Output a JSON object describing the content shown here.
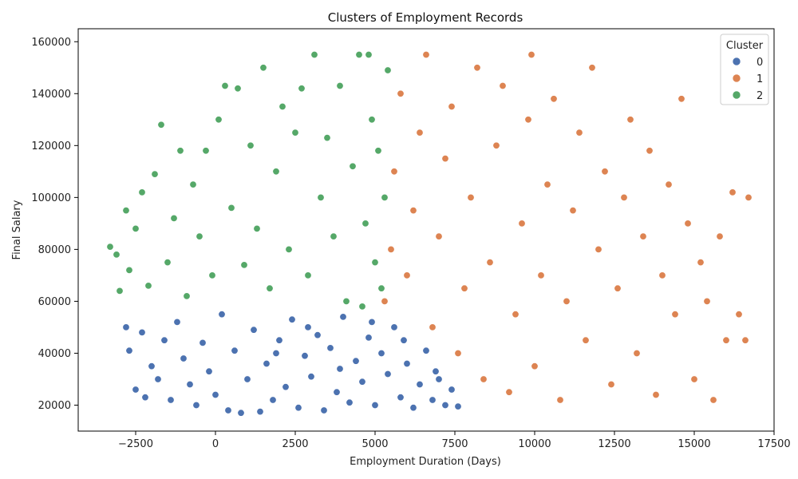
{
  "chart_data": {
    "type": "scatter",
    "title": "Clusters of Employment Records",
    "xlabel": "Employment Duration (Days)",
    "ylabel": "Final Salary",
    "xlim": [
      -4300,
      17500
    ],
    "ylim": [
      10000,
      165000
    ],
    "xticks": [
      -2500,
      0,
      2500,
      5000,
      7500,
      10000,
      12500,
      15000,
      17500
    ],
    "xtick_labels": [
      "−2500",
      "0",
      "2500",
      "5000",
      "7500",
      "10000",
      "12500",
      "15000",
      "17500"
    ],
    "yticks": [
      20000,
      40000,
      60000,
      80000,
      100000,
      120000,
      140000,
      160000
    ],
    "ytick_labels": [
      "20000",
      "40000",
      "60000",
      "80000",
      "100000",
      "120000",
      "140000",
      "160000"
    ],
    "grid": false,
    "legend": {
      "title": "Cluster",
      "placement": "top-right",
      "entries": [
        {
          "label": "0",
          "color": "#4c72b0"
        },
        {
          "label": "1",
          "color": "#dd8452"
        },
        {
          "label": "2",
          "color": "#55a868"
        }
      ]
    },
    "series": [
      {
        "name": "0",
        "color": "#4c72b0",
        "points": [
          [
            -2500,
            26000
          ],
          [
            -2700,
            41000
          ],
          [
            -2800,
            50000
          ],
          [
            -2200,
            23000
          ],
          [
            -2300,
            48000
          ],
          [
            -2000,
            35000
          ],
          [
            -1800,
            30000
          ],
          [
            -1600,
            45000
          ],
          [
            -1400,
            22000
          ],
          [
            -1200,
            52000
          ],
          [
            -1000,
            38000
          ],
          [
            -800,
            28000
          ],
          [
            -600,
            20000
          ],
          [
            -400,
            44000
          ],
          [
            -200,
            33000
          ],
          [
            0,
            24000
          ],
          [
            200,
            55000
          ],
          [
            400,
            18000
          ],
          [
            600,
            41000
          ],
          [
            800,
            17000
          ],
          [
            1000,
            30000
          ],
          [
            1200,
            49000
          ],
          [
            1400,
            17500
          ],
          [
            1600,
            36000
          ],
          [
            1800,
            22000
          ],
          [
            2000,
            45000
          ],
          [
            2200,
            27000
          ],
          [
            2400,
            53000
          ],
          [
            2600,
            19000
          ],
          [
            2800,
            39000
          ],
          [
            3000,
            31000
          ],
          [
            3200,
            47000
          ],
          [
            3400,
            18000
          ],
          [
            3600,
            42000
          ],
          [
            3800,
            25000
          ],
          [
            4000,
            54000
          ],
          [
            4200,
            21000
          ],
          [
            4400,
            37000
          ],
          [
            4600,
            29000
          ],
          [
            4800,
            46000
          ],
          [
            5000,
            20000
          ],
          [
            5200,
            40000
          ],
          [
            5400,
            32000
          ],
          [
            5600,
            50000
          ],
          [
            5800,
            23000
          ],
          [
            6000,
            36000
          ],
          [
            6200,
            19000
          ],
          [
            6400,
            28000
          ],
          [
            6600,
            41000
          ],
          [
            6800,
            22000
          ],
          [
            7000,
            30000
          ],
          [
            7200,
            20000
          ],
          [
            7400,
            26000
          ],
          [
            7600,
            19500
          ],
          [
            6900,
            33000
          ],
          [
            5900,
            45000
          ],
          [
            4900,
            52000
          ],
          [
            3900,
            34000
          ],
          [
            2900,
            50000
          ],
          [
            1900,
            40000
          ]
        ]
      },
      {
        "name": "1",
        "color": "#dd8452",
        "points": [
          [
            5300,
            60000
          ],
          [
            5500,
            80000
          ],
          [
            5600,
            110000
          ],
          [
            5800,
            140000
          ],
          [
            6000,
            70000
          ],
          [
            6200,
            95000
          ],
          [
            6400,
            125000
          ],
          [
            6600,
            155000
          ],
          [
            6800,
            50000
          ],
          [
            7000,
            85000
          ],
          [
            7200,
            115000
          ],
          [
            7400,
            135000
          ],
          [
            7600,
            40000
          ],
          [
            7800,
            65000
          ],
          [
            8000,
            100000
          ],
          [
            8200,
            150000
          ],
          [
            8400,
            30000
          ],
          [
            8600,
            75000
          ],
          [
            8800,
            120000
          ],
          [
            9000,
            143000
          ],
          [
            9200,
            25000
          ],
          [
            9400,
            55000
          ],
          [
            9600,
            90000
          ],
          [
            9800,
            130000
          ],
          [
            9900,
            155000
          ],
          [
            10000,
            35000
          ],
          [
            10200,
            70000
          ],
          [
            10400,
            105000
          ],
          [
            10600,
            138000
          ],
          [
            10800,
            22000
          ],
          [
            11000,
            60000
          ],
          [
            11200,
            95000
          ],
          [
            11400,
            125000
          ],
          [
            11600,
            45000
          ],
          [
            11800,
            150000
          ],
          [
            12000,
            80000
          ],
          [
            12200,
            110000
          ],
          [
            12400,
            28000
          ],
          [
            12600,
            65000
          ],
          [
            12800,
            100000
          ],
          [
            13000,
            130000
          ],
          [
            13200,
            40000
          ],
          [
            13400,
            85000
          ],
          [
            13600,
            118000
          ],
          [
            13800,
            24000
          ],
          [
            14000,
            70000
          ],
          [
            14200,
            105000
          ],
          [
            14400,
            55000
          ],
          [
            14600,
            138000
          ],
          [
            14800,
            90000
          ],
          [
            15000,
            30000
          ],
          [
            15200,
            75000
          ],
          [
            15400,
            60000
          ],
          [
            15600,
            22000
          ],
          [
            15800,
            85000
          ],
          [
            16000,
            45000
          ],
          [
            16200,
            102000
          ],
          [
            16400,
            55000
          ],
          [
            16600,
            45000
          ],
          [
            16700,
            100000
          ]
        ]
      },
      {
        "name": "2",
        "color": "#55a868",
        "points": [
          [
            -3300,
            81000
          ],
          [
            -3100,
            78000
          ],
          [
            -3000,
            64000
          ],
          [
            -2800,
            95000
          ],
          [
            -2700,
            72000
          ],
          [
            -2500,
            88000
          ],
          [
            -2300,
            102000
          ],
          [
            -2100,
            66000
          ],
          [
            -1900,
            109000
          ],
          [
            -1700,
            128000
          ],
          [
            -1500,
            75000
          ],
          [
            -1300,
            92000
          ],
          [
            -1100,
            118000
          ],
          [
            -900,
            62000
          ],
          [
            -700,
            105000
          ],
          [
            -500,
            85000
          ],
          [
            -300,
            118000
          ],
          [
            -100,
            70000
          ],
          [
            100,
            130000
          ],
          [
            300,
            143000
          ],
          [
            500,
            96000
          ],
          [
            700,
            142000
          ],
          [
            900,
            74000
          ],
          [
            1100,
            120000
          ],
          [
            1300,
            88000
          ],
          [
            1500,
            150000
          ],
          [
            1700,
            65000
          ],
          [
            1900,
            110000
          ],
          [
            2100,
            135000
          ],
          [
            2300,
            80000
          ],
          [
            2500,
            125000
          ],
          [
            2700,
            142000
          ],
          [
            2900,
            70000
          ],
          [
            3100,
            155000
          ],
          [
            3300,
            100000
          ],
          [
            3500,
            123000
          ],
          [
            3700,
            85000
          ],
          [
            3900,
            143000
          ],
          [
            4100,
            60000
          ],
          [
            4300,
            112000
          ],
          [
            4500,
            155000
          ],
          [
            4700,
            90000
          ],
          [
            4800,
            155000
          ],
          [
            4900,
            130000
          ],
          [
            5000,
            75000
          ],
          [
            5100,
            118000
          ],
          [
            5200,
            65000
          ],
          [
            5300,
            100000
          ],
          [
            5400,
            149000
          ],
          [
            4600,
            58000
          ]
        ]
      }
    ]
  }
}
